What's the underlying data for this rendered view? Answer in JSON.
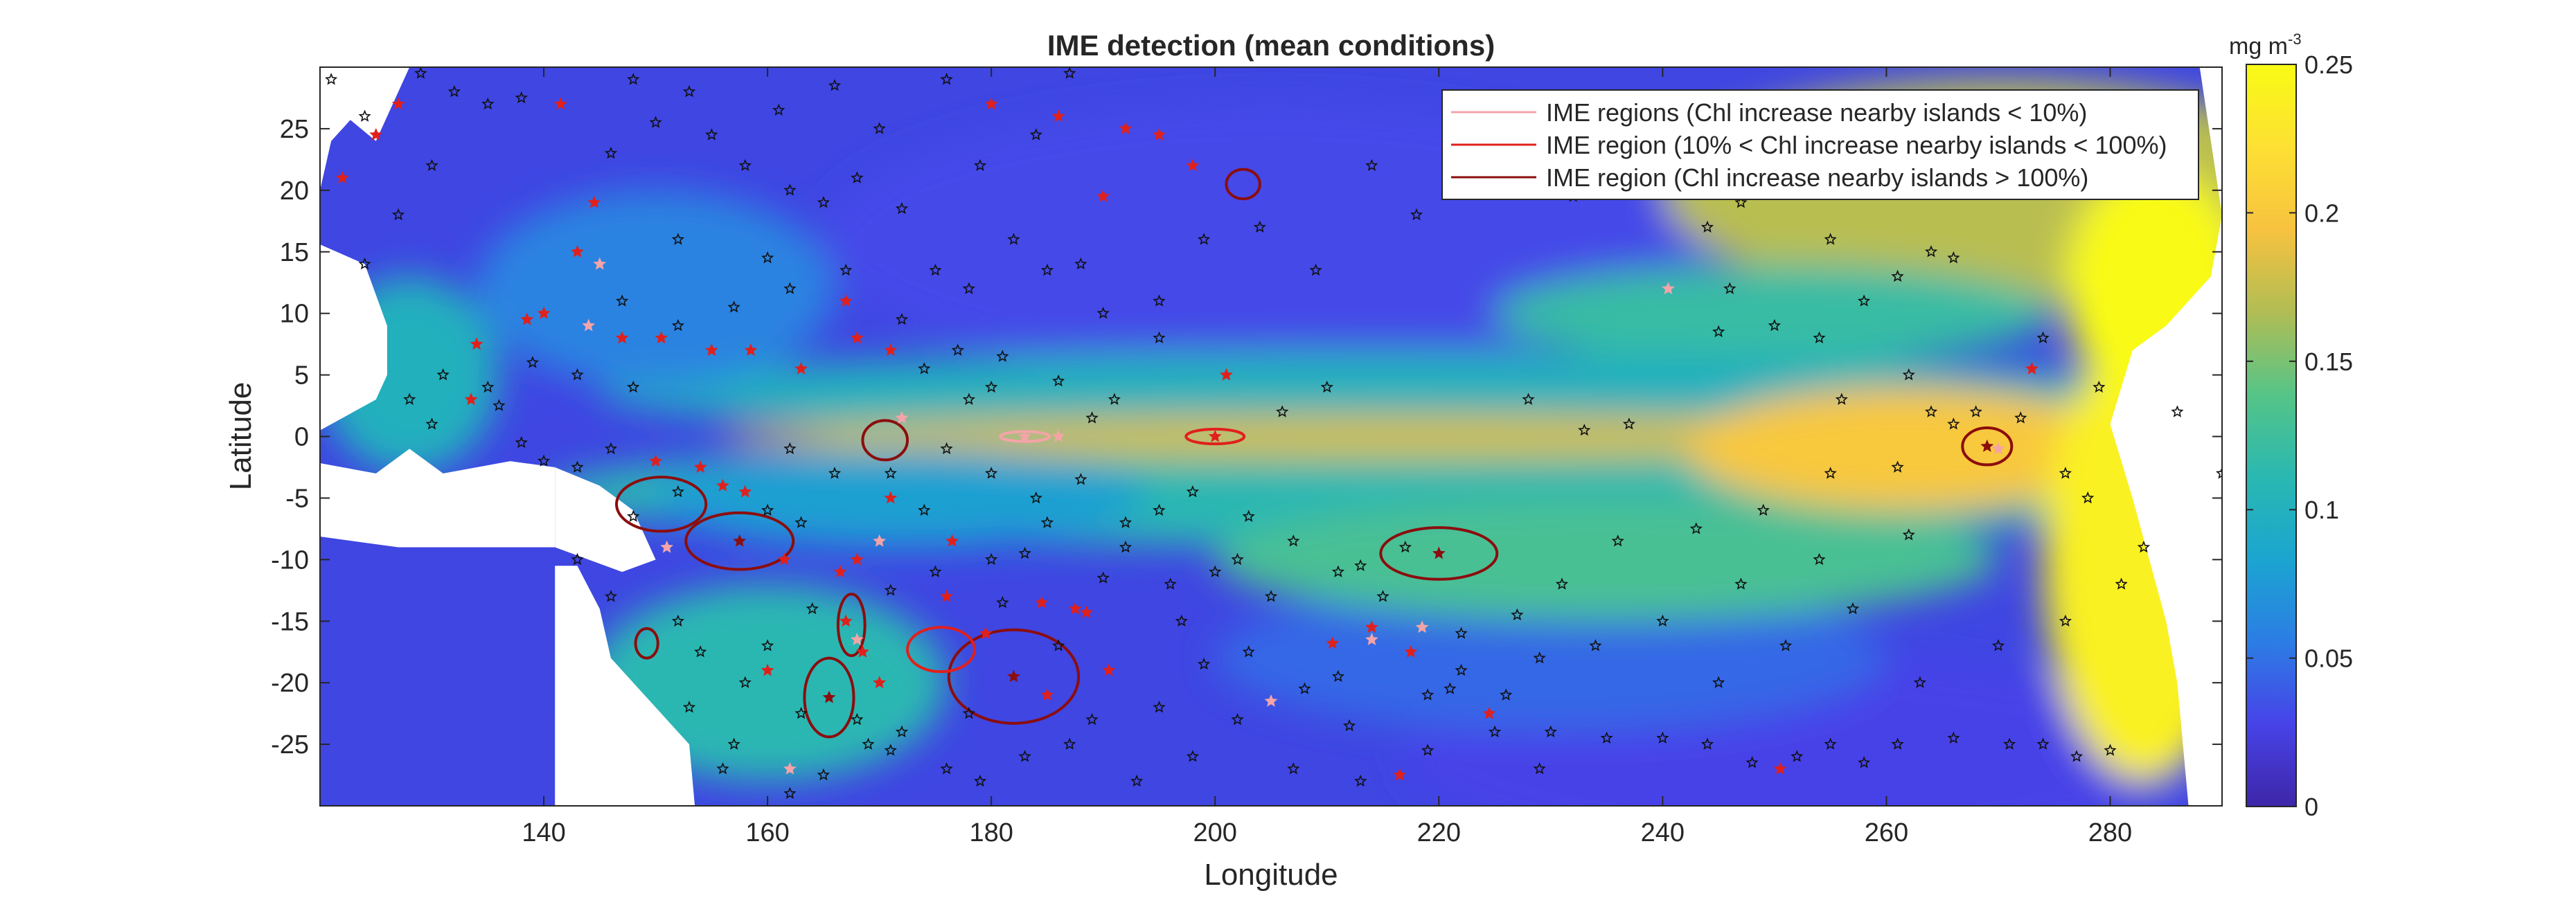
{
  "chart_data": {
    "type": "heatmap",
    "title": "IME detection (mean conditions)",
    "xlabel": "Longitude",
    "ylabel": "Latitude",
    "xlim": [
      120,
      290
    ],
    "ylim": [
      -30,
      30
    ],
    "x_ticks": [
      140,
      160,
      180,
      200,
      220,
      240,
      260,
      280
    ],
    "y_ticks": [
      25,
      20,
      15,
      10,
      5,
      0,
      -5,
      -10,
      -15,
      -20,
      -25
    ],
    "colorbar": {
      "unit_base": "mg m",
      "unit_exp": "-3",
      "min": 0,
      "max": 0.25,
      "ticks": [
        0,
        0.05,
        0.1,
        0.15,
        0.2,
        0.25
      ],
      "tick_labels": [
        "0",
        "0.05",
        "0.1",
        "0.15",
        "0.2",
        "0.25"
      ],
      "colormap": [
        "#3e26a8",
        "#4743e8",
        "#2c7de4",
        "#1ba5d0",
        "#2ab8b1",
        "#56c487",
        "#b1bd54",
        "#f7c23f",
        "#fde033",
        "#f9fb15"
      ]
    },
    "legend": {
      "placement": "top-right",
      "entries": [
        {
          "label": "IME regions (Chl increase nearby islands < 10%)",
          "color": "#f4a4a8"
        },
        {
          "label": "IME region (10% < Chl increase nearby islands < 100%)",
          "color": "#e0201c"
        },
        {
          "label": "IME region (Chl increase nearby islands > 100%)",
          "color": "#8b0d0d"
        }
      ]
    },
    "ime_regions": [
      {
        "lon": 200,
        "lat": 0,
        "rlon": 2.6,
        "rlat": 0.6,
        "class": "moderate"
      },
      {
        "lon": 183,
        "lat": 0,
        "rlon": 2.2,
        "rlat": 0.4,
        "class": "low"
      },
      {
        "lon": 269,
        "lat": -0.8,
        "rlon": 2.2,
        "rlat": 1.5,
        "class": "high"
      },
      {
        "lon": 220,
        "lat": -9.5,
        "rlon": 5.2,
        "rlat": 2.1,
        "class": "high"
      },
      {
        "lon": 157.5,
        "lat": -8.5,
        "rlon": 4.8,
        "rlat": 2.3,
        "class": "high"
      },
      {
        "lon": 150.5,
        "lat": -5.5,
        "rlon": 4.0,
        "rlat": 2.2,
        "class": "high"
      },
      {
        "lon": 182,
        "lat": -19.5,
        "rlon": 5.8,
        "rlat": 3.8,
        "class": "high"
      },
      {
        "lon": 165.5,
        "lat": -21.2,
        "rlon": 2.2,
        "rlat": 3.2,
        "class": "high"
      },
      {
        "lon": 170.5,
        "lat": -0.3,
        "rlon": 2.0,
        "rlat": 1.6,
        "class": "high"
      },
      {
        "lon": 167.5,
        "lat": -15.3,
        "rlon": 1.2,
        "rlat": 2.5,
        "class": "high"
      },
      {
        "lon": 175.5,
        "lat": -17.3,
        "rlon": 3.0,
        "rlat": 1.8,
        "class": "moderate"
      },
      {
        "lon": 202.5,
        "lat": 20.5,
        "rlon": 1.5,
        "rlat": 1.2,
        "class": "high"
      },
      {
        "lon": 149.2,
        "lat": -16.8,
        "rlon": 1.0,
        "rlat": 1.2,
        "class": "high"
      }
    ],
    "islands": [
      {
        "lon": 200,
        "lat": 0,
        "class": "moderate"
      },
      {
        "lon": 183,
        "lat": 0,
        "class": "low"
      },
      {
        "lon": 269,
        "lat": -0.8,
        "class": "high"
      },
      {
        "lon": 220,
        "lat": -9.5,
        "class": "high"
      },
      {
        "lon": 157.5,
        "lat": -8.5,
        "class": "high"
      },
      {
        "lon": 182,
        "lat": -19.5,
        "class": "high"
      },
      {
        "lon": 165.5,
        "lat": -21.2,
        "class": "high"
      },
      {
        "lon": 147,
        "lat": 8,
        "class": "moderate"
      },
      {
        "lon": 150.5,
        "lat": 8,
        "class": "moderate"
      },
      {
        "lon": 155,
        "lat": 7,
        "class": "moderate"
      },
      {
        "lon": 158.5,
        "lat": 7,
        "class": "moderate"
      },
      {
        "lon": 163,
        "lat": 5.5,
        "class": "moderate"
      },
      {
        "lon": 168,
        "lat": 8,
        "class": "moderate"
      },
      {
        "lon": 171,
        "lat": 7,
        "class": "moderate"
      },
      {
        "lon": 167,
        "lat": 11,
        "class": "moderate"
      },
      {
        "lon": 143,
        "lat": 15,
        "class": "moderate"
      },
      {
        "lon": 144.5,
        "lat": 19,
        "class": "moderate"
      },
      {
        "lon": 141.5,
        "lat": 27,
        "class": "moderate"
      },
      {
        "lon": 127,
        "lat": 27,
        "class": "moderate"
      },
      {
        "lon": 125,
        "lat": 24.5,
        "class": "moderate"
      },
      {
        "lon": 122,
        "lat": 21,
        "class": "moderate"
      },
      {
        "lon": 134,
        "lat": 7.5,
        "class": "moderate"
      },
      {
        "lon": 138.5,
        "lat": 9.5,
        "class": "moderate"
      },
      {
        "lon": 140,
        "lat": 10,
        "class": "moderate"
      },
      {
        "lon": 133.5,
        "lat": 3,
        "class": "moderate"
      },
      {
        "lon": 150,
        "lat": -2,
        "class": "moderate"
      },
      {
        "lon": 154,
        "lat": -2.5,
        "class": "moderate"
      },
      {
        "lon": 156,
        "lat": -4,
        "class": "moderate"
      },
      {
        "lon": 158,
        "lat": -4.5,
        "class": "moderate"
      },
      {
        "lon": 161.5,
        "lat": -10,
        "class": "moderate"
      },
      {
        "lon": 167,
        "lat": -15,
        "class": "moderate"
      },
      {
        "lon": 168.5,
        "lat": -17.5,
        "class": "moderate"
      },
      {
        "lon": 170,
        "lat": -20,
        "class": "moderate"
      },
      {
        "lon": 176,
        "lat": -13,
        "class": "moderate"
      },
      {
        "lon": 179.5,
        "lat": -16,
        "class": "moderate"
      },
      {
        "lon": 184.5,
        "lat": -13.5,
        "class": "moderate"
      },
      {
        "lon": 187.5,
        "lat": -14,
        "class": "moderate"
      },
      {
        "lon": 188.5,
        "lat": -14.3,
        "class": "moderate"
      },
      {
        "lon": 190.5,
        "lat": -19,
        "class": "moderate"
      },
      {
        "lon": 185,
        "lat": -21,
        "class": "moderate"
      },
      {
        "lon": 210.5,
        "lat": -16.8,
        "class": "moderate"
      },
      {
        "lon": 214,
        "lat": -15.5,
        "class": "moderate"
      },
      {
        "lon": 217.5,
        "lat": -17.5,
        "class": "moderate"
      },
      {
        "lon": 224.5,
        "lat": -22.5,
        "class": "moderate"
      },
      {
        "lon": 216.5,
        "lat": -27.5,
        "class": "moderate"
      },
      {
        "lon": 250.5,
        "lat": -27,
        "class": "moderate"
      },
      {
        "lon": 201,
        "lat": 5,
        "class": "moderate"
      },
      {
        "lon": 192,
        "lat": 25,
        "class": "moderate"
      },
      {
        "lon": 195,
        "lat": 24.5,
        "class": "moderate"
      },
      {
        "lon": 186,
        "lat": 26,
        "class": "moderate"
      },
      {
        "lon": 180,
        "lat": 27,
        "class": "moderate"
      },
      {
        "lon": 198,
        "lat": 22,
        "class": "moderate"
      },
      {
        "lon": 190,
        "lat": 19.5,
        "class": "moderate"
      },
      {
        "lon": 273,
        "lat": 5.5,
        "class": "moderate"
      },
      {
        "lon": 171,
        "lat": -5,
        "class": "moderate"
      },
      {
        "lon": 168,
        "lat": -10,
        "class": "moderate"
      },
      {
        "lon": 176.5,
        "lat": -8.5,
        "class": "moderate"
      },
      {
        "lon": 160,
        "lat": -19,
        "class": "moderate"
      },
      {
        "lon": 166.5,
        "lat": -11,
        "class": "moderate"
      },
      {
        "lon": 240.5,
        "lat": 12,
        "class": "low"
      },
      {
        "lon": 214,
        "lat": -16.5,
        "class": "low"
      },
      {
        "lon": 218.5,
        "lat": -15.5,
        "class": "low"
      },
      {
        "lon": 186,
        "lat": 0,
        "class": "low"
      },
      {
        "lon": 172,
        "lat": 1.5,
        "class": "low"
      },
      {
        "lon": 168,
        "lat": -16.5,
        "class": "low"
      },
      {
        "lon": 162,
        "lat": -27,
        "class": "low"
      },
      {
        "lon": 170,
        "lat": -8.5,
        "class": "low"
      },
      {
        "lon": 145,
        "lat": 14,
        "class": "low"
      },
      {
        "lon": 144,
        "lat": 9,
        "class": "low"
      },
      {
        "lon": 270,
        "lat": -1,
        "class": "low"
      },
      {
        "lon": 151,
        "lat": -9,
        "class": "low"
      },
      {
        "lon": 205,
        "lat": -21.5,
        "class": "low"
      }
    ],
    "stars_only": [
      [
        138,
        27.5
      ],
      [
        150,
        25.5
      ],
      [
        155,
        24.5
      ],
      [
        161,
        26.5
      ],
      [
        166,
        28.5
      ],
      [
        176,
        29
      ],
      [
        187,
        29.5
      ],
      [
        184,
        24.5
      ],
      [
        179,
        22
      ],
      [
        172,
        18.5
      ],
      [
        175,
        13.5
      ],
      [
        178,
        12
      ],
      [
        185,
        13.5
      ],
      [
        190,
        10
      ],
      [
        195,
        11
      ],
      [
        199,
        16
      ],
      [
        204,
        17
      ],
      [
        209,
        13.5
      ],
      [
        221,
        25
      ],
      [
        234,
        26
      ],
      [
        238,
        27
      ],
      [
        232,
        19.5
      ],
      [
        236,
        20
      ],
      [
        244,
        17
      ],
      [
        246,
        12
      ],
      [
        250,
        9
      ],
      [
        254,
        8
      ],
      [
        256,
        3
      ],
      [
        261,
        13
      ],
      [
        264,
        15
      ],
      [
        266,
        14.5
      ],
      [
        247,
        19
      ],
      [
        237,
        1
      ],
      [
        233,
        0.5
      ],
      [
        245,
        8.5
      ],
      [
        228,
        3
      ],
      [
        210,
        4
      ],
      [
        206,
        2
      ],
      [
        191,
        3
      ],
      [
        186,
        4.5
      ],
      [
        178,
        3
      ],
      [
        174,
        5.5
      ],
      [
        181,
        6.5
      ],
      [
        160,
        14.5
      ],
      [
        152,
        16
      ],
      [
        146,
        23
      ],
      [
        147,
        11
      ],
      [
        152,
        9
      ],
      [
        157,
        10.5
      ],
      [
        162,
        12
      ],
      [
        167,
        13.5
      ],
      [
        172,
        9.5
      ],
      [
        177,
        7
      ],
      [
        180,
        4
      ],
      [
        136,
        2.5
      ],
      [
        130,
        1
      ],
      [
        138,
        -0.5
      ],
      [
        140,
        -2
      ],
      [
        143,
        -2.5
      ],
      [
        146,
        -1
      ],
      [
        162,
        -1
      ],
      [
        166,
        -3
      ],
      [
        174,
        -6
      ],
      [
        180,
        -3
      ],
      [
        184,
        -5
      ],
      [
        188,
        -3.5
      ],
      [
        192,
        -7
      ],
      [
        195,
        -6
      ],
      [
        198,
        -4.5
      ],
      [
        203,
        -6.5
      ],
      [
        207,
        -8.5
      ],
      [
        211,
        -11
      ],
      [
        213,
        -10.5
      ],
      [
        217,
        -9
      ],
      [
        215,
        -13
      ],
      [
        205,
        -13
      ],
      [
        202,
        -10
      ],
      [
        196,
        -12
      ],
      [
        190,
        -11.5
      ],
      [
        180,
        -10
      ],
      [
        175,
        -11
      ],
      [
        171,
        -12.5
      ],
      [
        164,
        -14
      ],
      [
        160,
        -17
      ],
      [
        154,
        -17.5
      ],
      [
        158,
        -20
      ],
      [
        153,
        -22
      ],
      [
        157,
        -25
      ],
      [
        165,
        -27.5
      ],
      [
        169,
        -25
      ],
      [
        172,
        -24
      ],
      [
        178,
        -22.5
      ],
      [
        183,
        -26
      ],
      [
        187,
        -25
      ],
      [
        189,
        -23
      ],
      [
        195,
        -22
      ],
      [
        199,
        -18.5
      ],
      [
        203,
        -17.5
      ],
      [
        208,
        -20.5
      ],
      [
        211,
        -19.5
      ],
      [
        219,
        -21
      ],
      [
        222,
        -19
      ],
      [
        225,
        -24
      ],
      [
        230,
        -24
      ],
      [
        235,
        -24.5
      ],
      [
        240,
        -24.5
      ],
      [
        244,
        -25
      ],
      [
        248,
        -26.5
      ],
      [
        252,
        -26
      ],
      [
        255,
        -25
      ],
      [
        258,
        -26.5
      ],
      [
        261,
        -25
      ],
      [
        266,
        -24.5
      ],
      [
        271,
        -25
      ],
      [
        274,
        -25
      ],
      [
        277,
        -26
      ],
      [
        280,
        -25.5
      ],
      [
        283,
        -9
      ],
      [
        281,
        -12
      ],
      [
        278,
        -5
      ],
      [
        276,
        -3
      ],
      [
        266,
        1
      ],
      [
        272,
        1.5
      ],
      [
        261,
        -2.5
      ],
      [
        255,
        -3
      ],
      [
        249,
        -6
      ],
      [
        243,
        -7.5
      ],
      [
        236,
        -8.5
      ],
      [
        231,
        -12
      ],
      [
        227,
        -14.5
      ],
      [
        222,
        -16
      ],
      [
        221,
        -20.5
      ],
      [
        219,
        -25.5
      ],
      [
        213,
        -28
      ],
      [
        226,
        -21
      ],
      [
        229,
        -18
      ],
      [
        200,
        -11
      ],
      [
        197,
        -15
      ],
      [
        186,
        -17
      ],
      [
        181,
        -13.5
      ],
      [
        179,
        -28
      ],
      [
        176,
        -27
      ],
      [
        171,
        -25.5
      ],
      [
        168,
        -23
      ],
      [
        163,
        -22.5
      ],
      [
        162,
        -29
      ],
      [
        156,
        -27
      ],
      [
        152,
        -15
      ],
      [
        146,
        -13
      ],
      [
        143,
        -10
      ],
      [
        148,
        -6.5
      ],
      [
        152,
        -4.5
      ],
      [
        160,
        -6
      ],
      [
        163,
        -7
      ],
      [
        171,
        -3
      ],
      [
        176,
        -1
      ],
      [
        189,
        1.5
      ],
      [
        185,
        -7
      ],
      [
        183,
        -9.5
      ],
      [
        192,
        -9
      ],
      [
        148,
        4
      ],
      [
        143,
        5
      ],
      [
        139,
        6
      ],
      [
        135,
        4
      ],
      [
        131,
        5
      ],
      [
        128,
        3
      ],
      [
        124,
        14
      ],
      [
        127,
        18
      ],
      [
        130,
        22
      ],
      [
        124,
        26
      ],
      [
        121,
        29
      ],
      [
        129,
        29.5
      ],
      [
        132,
        28
      ],
      [
        135,
        27
      ],
      [
        148,
        29
      ],
      [
        153,
        28
      ],
      [
        158,
        22
      ],
      [
        162,
        20
      ],
      [
        165,
        19
      ],
      [
        168,
        21
      ],
      [
        170,
        25
      ],
      [
        182,
        16
      ],
      [
        188,
        14
      ],
      [
        195,
        8
      ],
      [
        214,
        22
      ],
      [
        218,
        18
      ],
      [
        224,
        20
      ],
      [
        229,
        22
      ],
      [
        241,
        22
      ],
      [
        251,
        20
      ],
      [
        255,
        16
      ],
      [
        258,
        11
      ],
      [
        262,
        5
      ],
      [
        264,
        2
      ],
      [
        268,
        2
      ],
      [
        274,
        8
      ],
      [
        279,
        4
      ],
      [
        286,
        2
      ],
      [
        290,
        -3
      ],
      [
        262,
        -8
      ],
      [
        254,
        -10
      ],
      [
        247,
        -12
      ],
      [
        240,
        -15
      ],
      [
        234,
        -17
      ],
      [
        229,
        -27
      ],
      [
        207,
        -27
      ],
      [
        198,
        -26
      ],
      [
        193,
        -28
      ],
      [
        202,
        -23
      ],
      [
        212,
        -23.5
      ],
      [
        245,
        -20
      ],
      [
        251,
        -17
      ],
      [
        257,
        -14
      ],
      [
        263,
        -20
      ],
      [
        270,
        -17
      ],
      [
        276,
        -15
      ]
    ]
  }
}
